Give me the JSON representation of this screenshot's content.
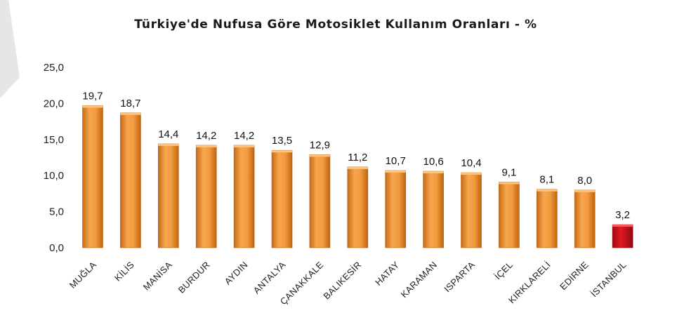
{
  "chart_data": {
    "type": "bar",
    "title": "Türkiye'de Nufusa Göre Motosiklet Kullanım Oranları - %",
    "xlabel": "",
    "ylabel": "",
    "ylim": [
      0,
      25
    ],
    "yticks": [
      "0,0",
      "5,0",
      "10,0",
      "15,0",
      "20,0",
      "25,0"
    ],
    "categories": [
      "MUĞLA",
      "KİLİS",
      "MANİSA",
      "BURDUR",
      "AYDIN",
      "ANTALYA",
      "ÇANAKKALE",
      "BALIKESİR",
      "HATAY",
      "KARAMAN",
      "ISPARTA",
      "İÇEL",
      "KIRKLARELİ",
      "EDİRNE",
      "İSTANBUL"
    ],
    "values": [
      19.7,
      18.7,
      14.4,
      14.2,
      14.2,
      13.5,
      12.9,
      11.2,
      10.7,
      10.6,
      10.4,
      9.1,
      8.1,
      8.0,
      3.2
    ],
    "value_labels": [
      "19,7",
      "18,7",
      "14,4",
      "14,2",
      "14,2",
      "13,5",
      "12,9",
      "11,2",
      "10,7",
      "10,6",
      "10,4",
      "9,1",
      "8,1",
      "8,0",
      "3,2"
    ],
    "bar_colors": [
      "#f0963a",
      "#f0963a",
      "#f0963a",
      "#f0963a",
      "#f0963a",
      "#f0963a",
      "#f0963a",
      "#f0963a",
      "#f0963a",
      "#f0963a",
      "#f0963a",
      "#f0963a",
      "#f0963a",
      "#f0963a",
      "#d0101a"
    ],
    "grid": false,
    "legend": "none"
  }
}
